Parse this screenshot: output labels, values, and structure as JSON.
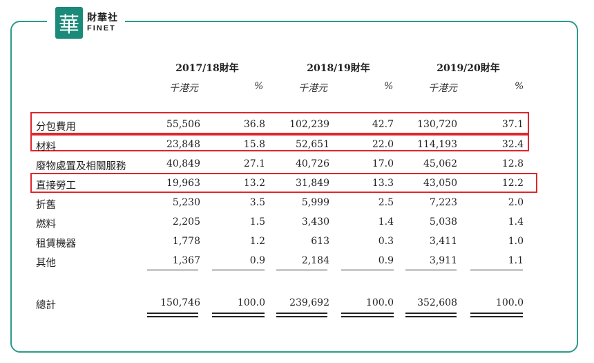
{
  "logo": {
    "glyph": "華",
    "name_cn": "財華社",
    "name_en": "FINET"
  },
  "years": [
    "2017/18財年",
    "2018/19財年",
    "2019/20財年"
  ],
  "units": {
    "amount": "千港元",
    "percent": "%"
  },
  "rows": [
    {
      "label": "分包費用",
      "values": [
        "55,506",
        "36.8",
        "102,239",
        "42.7",
        "130,720",
        "37.1"
      ],
      "highlighted": true
    },
    {
      "label": "材料",
      "values": [
        "23,848",
        "15.8",
        "52,651",
        "22.0",
        "114,193",
        "32.4"
      ],
      "highlighted": true
    },
    {
      "label": "廢物處置及相關服務",
      "values": [
        "40,849",
        "27.1",
        "40,726",
        "17.0",
        "45,062",
        "12.8"
      ],
      "highlighted": false
    },
    {
      "label": "直接勞工",
      "values": [
        "19,963",
        "13.2",
        "31,849",
        "13.3",
        "43,050",
        "12.2"
      ],
      "highlighted": true
    },
    {
      "label": "折舊",
      "values": [
        "5,230",
        "3.5",
        "5,999",
        "2.5",
        "7,223",
        "2.0"
      ],
      "highlighted": false
    },
    {
      "label": "燃料",
      "values": [
        "2,205",
        "1.5",
        "3,430",
        "1.4",
        "5,038",
        "1.4"
      ],
      "highlighted": false
    },
    {
      "label": "租賃機器",
      "values": [
        "1,778",
        "1.2",
        "613",
        "0.3",
        "3,411",
        "1.0"
      ],
      "highlighted": false
    },
    {
      "label": "其他",
      "values": [
        "1,367",
        "0.9",
        "2,184",
        "0.9",
        "3,911",
        "1.1"
      ],
      "highlighted": false
    }
  ],
  "total": {
    "label": "總計",
    "values": [
      "150,746",
      "100.0",
      "239,692",
      "100.0",
      "352,608",
      "100.0"
    ]
  },
  "colors": {
    "frame": "#2c9a8a",
    "highlight": "#e0262c",
    "logo": "#1b8a78"
  }
}
